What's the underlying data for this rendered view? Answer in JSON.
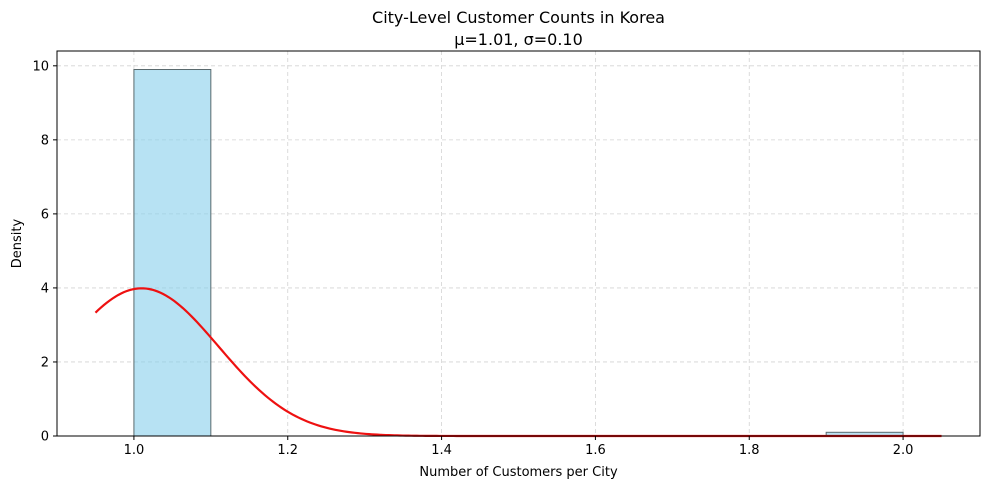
{
  "chart_data": {
    "type": "bar",
    "title": "City-Level Customer Counts in Korea",
    "subtitle": "μ=1.01, σ=0.10",
    "xlabel": "Number of Customers per City",
    "ylabel": "Density",
    "xlim": [
      0.9,
      2.1
    ],
    "ylim": [
      0,
      10.4
    ],
    "x_ticks": [
      1.0,
      1.2,
      1.4,
      1.6,
      1.8,
      2.0
    ],
    "x_tick_labels": [
      "1.0",
      "1.2",
      "1.4",
      "1.6",
      "1.8",
      "2.0"
    ],
    "y_ticks": [
      0,
      2,
      4,
      6,
      8,
      10
    ],
    "y_tick_labels": [
      "0",
      "2",
      "4",
      "6",
      "8",
      "10"
    ],
    "grid": true,
    "histogram": {
      "bins": [
        {
          "x0": 1.0,
          "x1": 1.1,
          "density": 9.9
        },
        {
          "x0": 1.9,
          "x1": 2.0,
          "density": 0.1
        }
      ],
      "fill_color": "#87ceeb",
      "edge_color": "#5a6a6e"
    },
    "normal_curve": {
      "mean": 1.01,
      "std": 0.1,
      "x_range": [
        0.95,
        2.05
      ],
      "color": "#ee1111"
    }
  }
}
